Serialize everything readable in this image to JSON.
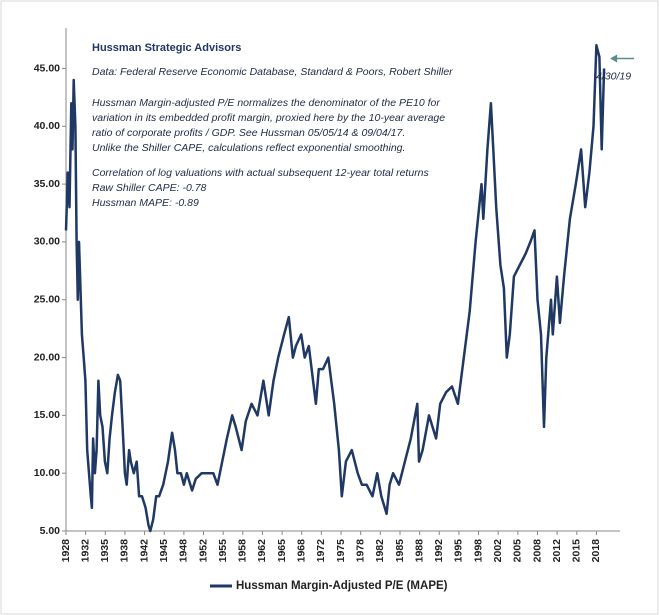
{
  "chart_data": {
    "type": "line",
    "title": "Hussman Strategic Advisors",
    "notes": [
      "Data: Federal Reserve Economic Database, Standard & Poors, Robert Shiller",
      "Hussman Margin-adjusted P/E normalizes the denominator of the PE10 for",
      "variation in its embedded profit margin, proxied here by the 10-year average",
      "ratio of corporate profits / GDP. See Hussman 05/05/14  & 09/04/17.",
      "Unlike the Shiller CAPE, calculations reflect exponential smoothing.",
      "Correlation of log valuations with actual subsequent 12-year total returns",
      "Raw Shiller CAPE: -0.78",
      "Hussman MAPE: -0.89"
    ],
    "end_annotation": "4/30/19",
    "x": [
      1928.0,
      1928.3,
      1928.6,
      1928.9,
      1929.1,
      1929.3,
      1929.6,
      1929.8,
      1930.0,
      1930.2,
      1930.4,
      1930.7,
      1931.0,
      1931.3,
      1931.6,
      1931.9,
      1932.2,
      1932.4,
      1932.6,
      1932.9,
      1933.2,
      1933.5,
      1933.8,
      1934.2,
      1934.6,
      1935.0,
      1935.4,
      1935.8,
      1936.3,
      1936.8,
      1937.2,
      1937.6,
      1938.0,
      1938.3,
      1938.7,
      1939.0,
      1939.5,
      1940.0,
      1940.4,
      1940.9,
      1941.5,
      1942.0,
      1942.3,
      1942.8,
      1943.3,
      1943.8,
      1944.5,
      1945.3,
      1946.0,
      1946.5,
      1946.9,
      1947.5,
      1948.0,
      1948.5,
      1949.4,
      1950.0,
      1951.0,
      1952.0,
      1953.0,
      1953.7,
      1954.5,
      1955.3,
      1956.2,
      1956.8,
      1957.8,
      1958.5,
      1959.5,
      1960.5,
      1961.5,
      1962.4,
      1963.2,
      1964.0,
      1965.0,
      1965.8,
      1966.5,
      1967.0,
      1967.9,
      1968.5,
      1969.2,
      1970.4,
      1970.9,
      1971.6,
      1972.5,
      1973.5,
      1974.3,
      1974.8,
      1975.5,
      1976.5,
      1977.5,
      1978.2,
      1979.0,
      1980.0,
      1980.8,
      1981.5,
      1982.4,
      1982.9,
      1983.5,
      1984.5,
      1985.5,
      1986.5,
      1987.6,
      1987.9,
      1988.5,
      1989.6,
      1990.8,
      1991.5,
      1992.5,
      1993.5,
      1994.5,
      1995.5,
      1996.5,
      1997.5,
      1998.5,
      1998.8,
      1999.5,
      2000.1,
      2000.5,
      2001.0,
      2001.7,
      2002.3,
      2002.8,
      2003.3,
      2004.0,
      2005.0,
      2006.0,
      2006.8,
      2007.5,
      2008.0,
      2008.6,
      2009.1,
      2009.5,
      2010.3,
      2010.6,
      2011.3,
      2011.8,
      2012.5,
      2013.5,
      2014.5,
      2015.4,
      2016.1,
      2016.8,
      2017.5,
      2018.0,
      2018.5,
      2018.9,
      2019.3
    ],
    "series": [
      {
        "name": "Hussman Margin-Adjusted P/E (MAPE)",
        "color": "#1f3864",
        "values": [
          31,
          36,
          33,
          42,
          38,
          44,
          40,
          30,
          25,
          30,
          27,
          22,
          20,
          18,
          12,
          10,
          8,
          7,
          13,
          10,
          12,
          18,
          15,
          14,
          11,
          10,
          13,
          15,
          17,
          18.5,
          18,
          14,
          10,
          9,
          12,
          11,
          10,
          11,
          8,
          8,
          7,
          5.5,
          5,
          6,
          8,
          8,
          9,
          11,
          13.5,
          12,
          10,
          10,
          9,
          10,
          8.5,
          9.5,
          10,
          10,
          10,
          9,
          11,
          13,
          15,
          14,
          12,
          14.5,
          16,
          15,
          18,
          15,
          18,
          20,
          22,
          23.5,
          20,
          21,
          22,
          20,
          21,
          16,
          19,
          19,
          20,
          16,
          12,
          8,
          11,
          12,
          10,
          9,
          9,
          8,
          10,
          8,
          6.5,
          9,
          10,
          9,
          11,
          13,
          16,
          11,
          12,
          15,
          13,
          16,
          17,
          17.5,
          16,
          20,
          24,
          30,
          35,
          32,
          38,
          42,
          38,
          33,
          28,
          26,
          20,
          22,
          27,
          28,
          29,
          30,
          31,
          25,
          22,
          14,
          20,
          25,
          22,
          27,
          23,
          27,
          32,
          35,
          38,
          33,
          36,
          40,
          47,
          46,
          38,
          45
        ]
      }
    ],
    "xlim": [
      1928,
      2022
    ],
    "xticks": [
      {
        "value": 1928.0,
        "label": "1928"
      },
      {
        "value": 1931.33,
        "label": "1932"
      },
      {
        "value": 1934.67,
        "label": "1935"
      },
      {
        "value": 1938.0,
        "label": "1938"
      },
      {
        "value": 1941.33,
        "label": "1942"
      },
      {
        "value": 1944.67,
        "label": "1945"
      },
      {
        "value": 1948.0,
        "label": "1948"
      },
      {
        "value": 1951.33,
        "label": "1952"
      },
      {
        "value": 1954.67,
        "label": "1955"
      },
      {
        "value": 1958.0,
        "label": "1958"
      },
      {
        "value": 1961.33,
        "label": "1962"
      },
      {
        "value": 1964.67,
        "label": "1965"
      },
      {
        "value": 1968.0,
        "label": "1968"
      },
      {
        "value": 1971.33,
        "label": "1972"
      },
      {
        "value": 1974.67,
        "label": "1975"
      },
      {
        "value": 1978.0,
        "label": "1978"
      },
      {
        "value": 1981.33,
        "label": "1982"
      },
      {
        "value": 1984.67,
        "label": "1985"
      },
      {
        "value": 1988.0,
        "label": "1988"
      },
      {
        "value": 1991.33,
        "label": "1992"
      },
      {
        "value": 1994.67,
        "label": "1995"
      },
      {
        "value": 1998.0,
        "label": "1998"
      },
      {
        "value": 2001.33,
        "label": "2002"
      },
      {
        "value": 2004.67,
        "label": "2005"
      },
      {
        "value": 2008.0,
        "label": "2008"
      },
      {
        "value": 2011.33,
        "label": "2012"
      },
      {
        "value": 2014.67,
        "label": "2015"
      },
      {
        "value": 2018.0,
        "label": "2018"
      }
    ],
    "ylim": [
      5,
      48.5
    ],
    "yticks": [
      {
        "value": 5,
        "label": "5.00"
      },
      {
        "value": 10,
        "label": "10.00"
      },
      {
        "value": 15,
        "label": "15.00"
      },
      {
        "value": 20,
        "label": "20.00"
      },
      {
        "value": 25,
        "label": "25.00"
      },
      {
        "value": 30,
        "label": "30.00"
      },
      {
        "value": 35,
        "label": "35.00"
      },
      {
        "value": 40,
        "label": "40.00"
      },
      {
        "value": 45,
        "label": "45.00"
      }
    ],
    "grid": false,
    "legend": "bottom"
  }
}
